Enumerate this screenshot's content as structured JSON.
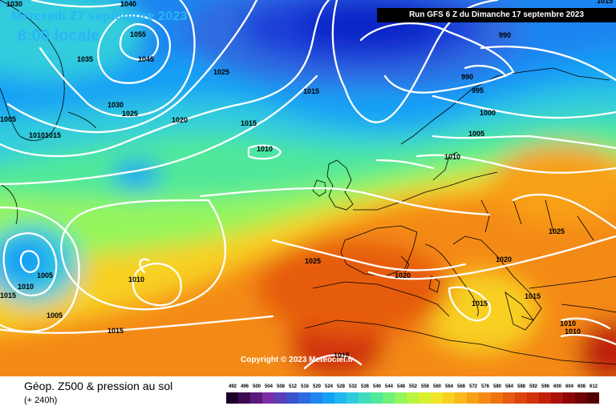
{
  "header": {
    "date": "Mercredi 27 septembre 2023",
    "time": "8:00 locale",
    "run": "Run GFS 6 Z du Dimanche 17 septembre 2023"
  },
  "copyright": "Copyright © 2023 Meteociel.fr",
  "footer": {
    "title": "Géop. Z500 & pression au sol",
    "subtitle": "(+ 240h)"
  },
  "isobar_labels": [
    "1030",
    "1040",
    "1055",
    "1045",
    "1035",
    "1025",
    "1030",
    "1025",
    "1005",
    "10101015",
    "1020",
    "1015",
    "1015",
    "1010",
    "990",
    "990",
    "995",
    "1000",
    "1005",
    "1010",
    "1015",
    "1025",
    "1020",
    "1025",
    "1020",
    "1005",
    "1010",
    "1010",
    "1005",
    "1015",
    "1015",
    "1015",
    "1015",
    "1010",
    "1010",
    "1015"
  ],
  "legend": {
    "values": [
      "492",
      "496",
      "500",
      "504",
      "508",
      "512",
      "516",
      "520",
      "524",
      "528",
      "532",
      "536",
      "540",
      "544",
      "548",
      "552",
      "556",
      "560",
      "564",
      "568",
      "572",
      "576",
      "580",
      "584",
      "588",
      "592",
      "596",
      "600",
      "604",
      "608",
      "612"
    ],
    "colors": [
      "#1a0026",
      "#3d0a52",
      "#5c1a7a",
      "#7a2ea3",
      "#5a3fb8",
      "#3a52cc",
      "#2d6be0",
      "#1f85f0",
      "#16a0f5",
      "#20b8f0",
      "#30ccdd",
      "#40dcc0",
      "#50e89a",
      "#70f078",
      "#95f55c",
      "#b8f540",
      "#d8f030",
      "#f0e628",
      "#f8d020",
      "#fab81c",
      "#f8a018",
      "#f48a14",
      "#ee7412",
      "#e65c10",
      "#dc460e",
      "#d0320c",
      "#c0200a",
      "#a81208",
      "#8c0806",
      "#700404",
      "#540000"
    ]
  },
  "colors": {
    "deep_low": "#0b28c8",
    "cold": "#1f85f0",
    "mid": "#50e89a",
    "warm": "#f8d020",
    "hot": "#dc460e",
    "isobar": "#ffffff"
  }
}
